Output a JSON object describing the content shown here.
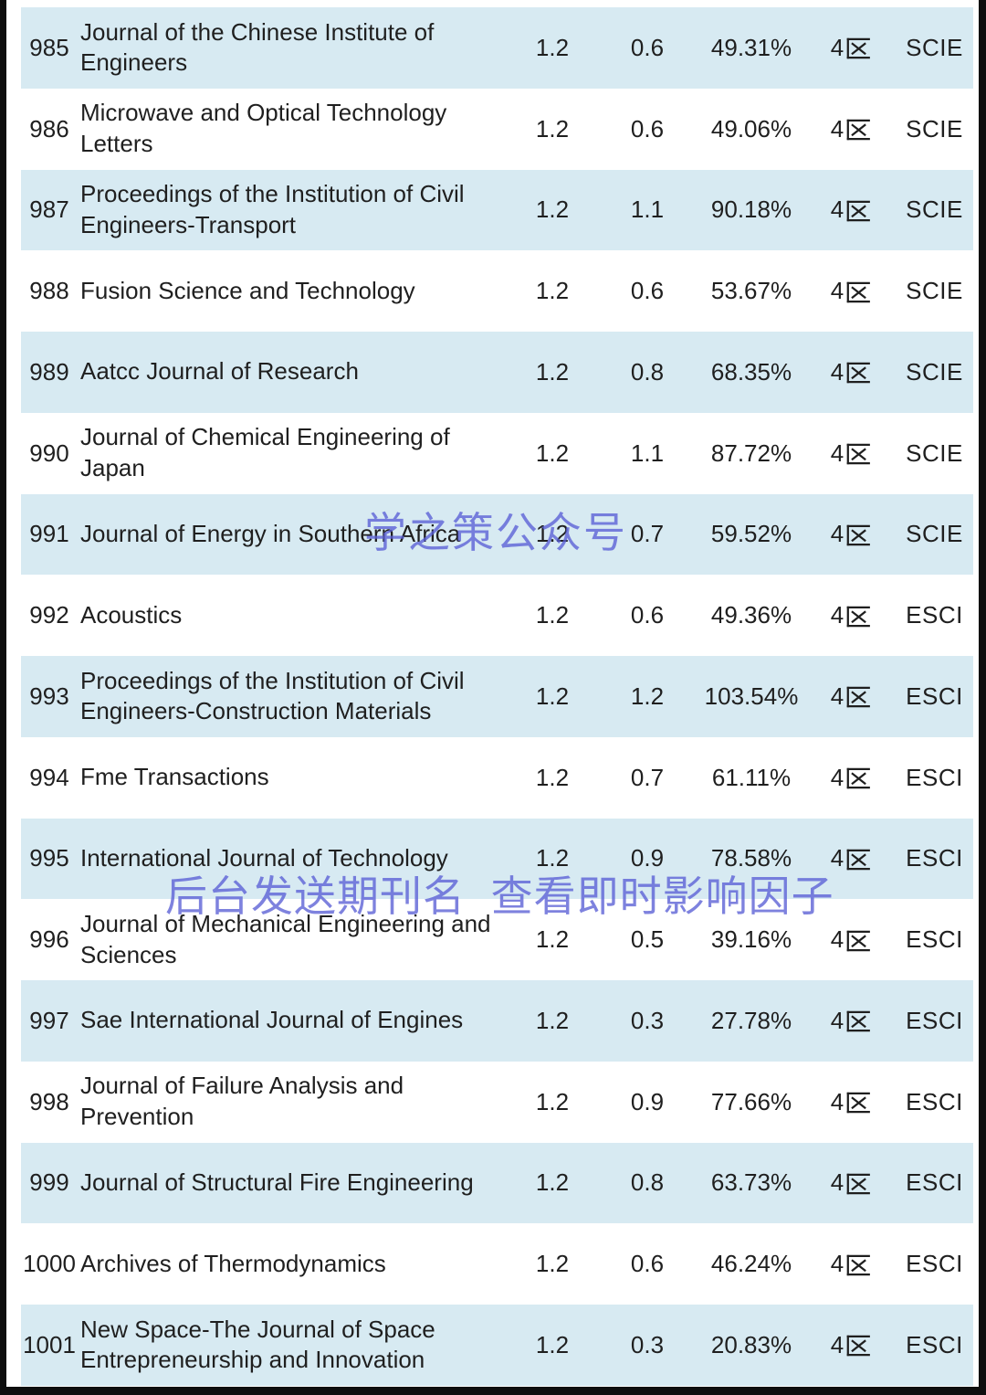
{
  "colors": {
    "row_highlight": "#d7eaf2",
    "watermark_blue": "#5a5fd6",
    "frame_black": "#0e0e0e",
    "text": "#1f1f1f"
  },
  "watermarks": {
    "brand": "学之策公众号",
    "promo": "后台发送期刊名 查看即时影响因子"
  },
  "table": {
    "rows": [
      {
        "rank": "985",
        "name": "Journal of the Chinese Institute of Engineers",
        "v1": "1.2",
        "v2": "0.6",
        "percent": "49.31%",
        "zone": "4区",
        "index": "SCIE"
      },
      {
        "rank": "986",
        "name": "Microwave and Optical Technology Letters",
        "v1": "1.2",
        "v2": "0.6",
        "percent": "49.06%",
        "zone": "4区",
        "index": "SCIE"
      },
      {
        "rank": "987",
        "name": "Proceedings of the Institution of Civil Engineers-Transport",
        "v1": "1.2",
        "v2": "1.1",
        "percent": "90.18%",
        "zone": "4区",
        "index": "SCIE"
      },
      {
        "rank": "988",
        "name": "Fusion Science and Technology",
        "v1": "1.2",
        "v2": "0.6",
        "percent": "53.67%",
        "zone": "4区",
        "index": "SCIE"
      },
      {
        "rank": "989",
        "name": "Aatcc Journal of Research",
        "v1": "1.2",
        "v2": "0.8",
        "percent": "68.35%",
        "zone": "4区",
        "index": "SCIE"
      },
      {
        "rank": "990",
        "name": "Journal of Chemical Engineering of Japan",
        "v1": "1.2",
        "v2": "1.1",
        "percent": "87.72%",
        "zone": "4区",
        "index": "SCIE"
      },
      {
        "rank": "991",
        "name": "Journal of Energy in Southern Africa",
        "v1": "1.2",
        "v2": "0.7",
        "percent": "59.52%",
        "zone": "4区",
        "index": "SCIE"
      },
      {
        "rank": "992",
        "name": "Acoustics",
        "v1": "1.2",
        "v2": "0.6",
        "percent": "49.36%",
        "zone": "4区",
        "index": "ESCI"
      },
      {
        "rank": "993",
        "name": "Proceedings of the Institution of Civil Engineers-Construction Materials",
        "v1": "1.2",
        "v2": "1.2",
        "percent": "103.54%",
        "zone": "4区",
        "index": "ESCI"
      },
      {
        "rank": "994",
        "name": "Fme Transactions",
        "v1": "1.2",
        "v2": "0.7",
        "percent": "61.11%",
        "zone": "4区",
        "index": "ESCI"
      },
      {
        "rank": "995",
        "name": "International Journal of Technology",
        "v1": "1.2",
        "v2": "0.9",
        "percent": "78.58%",
        "zone": "4区",
        "index": "ESCI"
      },
      {
        "rank": "996",
        "name": "Journal of Mechanical Engineering and Sciences",
        "v1": "1.2",
        "v2": "0.5",
        "percent": "39.16%",
        "zone": "4区",
        "index": "ESCI"
      },
      {
        "rank": "997",
        "name": "Sae International Journal of Engines",
        "v1": "1.2",
        "v2": "0.3",
        "percent": "27.78%",
        "zone": "4区",
        "index": "ESCI"
      },
      {
        "rank": "998",
        "name": "Journal of Failure Analysis and Prevention",
        "v1": "1.2",
        "v2": "0.9",
        "percent": "77.66%",
        "zone": "4区",
        "index": "ESCI"
      },
      {
        "rank": "999",
        "name": "Journal of Structural Fire Engineering",
        "v1": "1.2",
        "v2": "0.8",
        "percent": "63.73%",
        "zone": "4区",
        "index": "ESCI"
      },
      {
        "rank": "1000",
        "name": "Archives of Thermodynamics",
        "v1": "1.2",
        "v2": "0.6",
        "percent": "46.24%",
        "zone": "4区",
        "index": "ESCI"
      },
      {
        "rank": "1001",
        "name": "New Space-The Journal of Space Entrepreneurship and Innovation",
        "v1": "1.2",
        "v2": "0.3",
        "percent": "20.83%",
        "zone": "4区",
        "index": "ESCI"
      }
    ]
  }
}
